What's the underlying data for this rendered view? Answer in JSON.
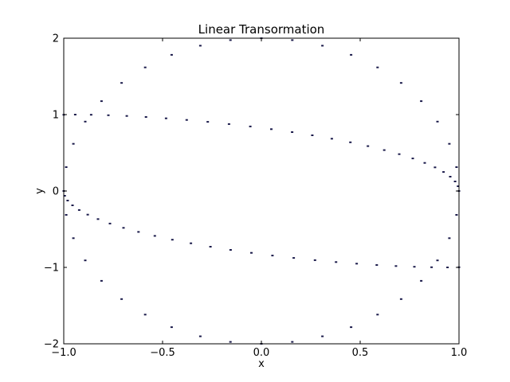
{
  "chart_data": {
    "type": "scatter",
    "title": "Linear Transormation",
    "xlabel": "x",
    "ylabel": "y",
    "xlim": [
      -1.0,
      1.0
    ],
    "ylim": [
      -2.0,
      2.0
    ],
    "xticks": [
      -1.0,
      -0.5,
      0.0,
      0.5,
      1.0
    ],
    "xtick_labels": [
      "−1.0",
      "−0.5",
      "0.0",
      "0.5",
      "1.0"
    ],
    "yticks": [
      -2,
      -1,
      0,
      1,
      2
    ],
    "ytick_labels": [
      "−2",
      "−1",
      "0",
      "1",
      "2"
    ],
    "grid": false,
    "marker_color": "#1a1a4a",
    "series": [
      {
        "points": [
          [
            1.0,
            0.0
          ],
          [
            0.995,
            0.0628
          ],
          [
            0.9801,
            0.1253
          ],
          [
            0.9556,
            0.1874
          ],
          [
            0.9217,
            0.2487
          ],
          [
            0.8785,
            0.309
          ],
          [
            0.8265,
            0.3681
          ],
          [
            0.766,
            0.4258
          ],
          [
            0.6975,
            0.4818
          ],
          [
            0.6217,
            0.5358
          ],
          [
            0.539,
            0.5878
          ],
          [
            0.4503,
            0.6374
          ],
          [
            0.3563,
            0.6845
          ],
          [
            0.2578,
            0.729
          ],
          [
            0.1556,
            0.7705
          ],
          [
            0.0506,
            0.809
          ],
          [
            -0.0562,
            0.8443
          ],
          [
            -0.1639,
            0.8763
          ],
          [
            -0.2714,
            0.9048
          ],
          [
            -0.3778,
            0.9298
          ],
          [
            -0.4822,
            0.9511
          ],
          [
            -0.5837,
            0.9686
          ],
          [
            -0.6812,
            0.9823
          ],
          [
            -0.774,
            0.9921
          ],
          [
            -0.8612,
            0.998
          ],
          [
            -0.942,
            1.0
          ],
          [
            -1.0,
            0.998
          ]
        ]
      },
      {
        "points": [
          [
            -1.0,
            0.0
          ],
          [
            -0.995,
            -0.0628
          ],
          [
            -0.9801,
            -0.1253
          ],
          [
            -0.9556,
            -0.1874
          ],
          [
            -0.9217,
            -0.2487
          ],
          [
            -0.8785,
            -0.309
          ],
          [
            -0.8265,
            -0.3681
          ],
          [
            -0.766,
            -0.4258
          ],
          [
            -0.6975,
            -0.4818
          ],
          [
            -0.6217,
            -0.5358
          ],
          [
            -0.539,
            -0.5878
          ],
          [
            -0.4503,
            -0.6374
          ],
          [
            -0.3563,
            -0.6845
          ],
          [
            -0.2578,
            -0.729
          ],
          [
            -0.1556,
            -0.7705
          ],
          [
            -0.0506,
            -0.809
          ],
          [
            0.0562,
            -0.8443
          ],
          [
            0.1639,
            -0.8763
          ],
          [
            0.2714,
            -0.9048
          ],
          [
            0.3778,
            -0.9298
          ],
          [
            0.4822,
            -0.9511
          ],
          [
            0.5837,
            -0.9686
          ],
          [
            0.6812,
            -0.9823
          ],
          [
            0.774,
            -0.9921
          ],
          [
            0.8612,
            -0.998
          ],
          [
            0.942,
            -1.0
          ],
          [
            1.0,
            -0.998
          ]
        ]
      },
      {
        "points": [
          [
            1.0,
            0.0
          ],
          [
            0.9877,
            0.3129
          ],
          [
            0.9511,
            0.6181
          ],
          [
            0.891,
            0.9081
          ],
          [
            0.809,
            1.1756
          ],
          [
            0.7071,
            1.4142
          ],
          [
            0.5878,
            1.618
          ],
          [
            0.454,
            1.782
          ],
          [
            0.309,
            1.9021
          ],
          [
            0.1564,
            1.9754
          ],
          [
            0.0,
            2.0
          ],
          [
            -0.1564,
            1.9754
          ],
          [
            -0.309,
            1.9021
          ],
          [
            -0.454,
            1.782
          ],
          [
            -0.5878,
            1.618
          ],
          [
            -0.7071,
            1.4142
          ],
          [
            -0.809,
            1.1756
          ],
          [
            -0.891,
            0.9081
          ],
          [
            -0.9511,
            0.6181
          ],
          [
            -0.9877,
            0.3129
          ],
          [
            -1.0,
            0.0
          ],
          [
            -0.9877,
            -0.3129
          ],
          [
            -0.9511,
            -0.6181
          ],
          [
            -0.891,
            -0.9081
          ],
          [
            -0.809,
            -1.1756
          ],
          [
            -0.7071,
            -1.4142
          ],
          [
            -0.5878,
            -1.618
          ],
          [
            -0.454,
            -1.782
          ],
          [
            -0.309,
            -1.9021
          ],
          [
            -0.1564,
            -1.9754
          ],
          [
            0.0,
            -2.0
          ],
          [
            0.1564,
            -1.9754
          ],
          [
            0.309,
            -1.9021
          ],
          [
            0.454,
            -1.782
          ],
          [
            0.5878,
            -1.618
          ],
          [
            0.7071,
            -1.4142
          ],
          [
            0.809,
            -1.1756
          ],
          [
            0.891,
            -0.9081
          ],
          [
            0.9511,
            -0.6181
          ],
          [
            0.9877,
            -0.3129
          ]
        ]
      }
    ]
  }
}
